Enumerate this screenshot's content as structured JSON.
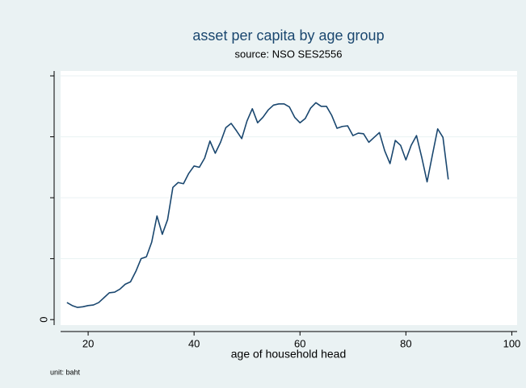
{
  "chart_data": {
    "type": "line",
    "title": "asset per capita by age group",
    "subtitle": "source: NSO SES2556",
    "x_label": "age of household head",
    "note": "unit: baht",
    "x": [
      16,
      17,
      18,
      19,
      20,
      21,
      22,
      23,
      24,
      25,
      26,
      27,
      28,
      29,
      30,
      31,
      32,
      33,
      34,
      35,
      36,
      37,
      38,
      39,
      40,
      41,
      42,
      43,
      44,
      45,
      46,
      47,
      48,
      49,
      50,
      51,
      52,
      53,
      54,
      55,
      56,
      57,
      58,
      59,
      60,
      61,
      62,
      63,
      64,
      65,
      66,
      67,
      68,
      69,
      70,
      71,
      72,
      73,
      74,
      75,
      76,
      77,
      78,
      79,
      80,
      81,
      82,
      83,
      84,
      85,
      86,
      87,
      88
    ],
    "series": [
      {
        "color": "#1a476f",
        "values": [
          0.28,
          0.23,
          0.2,
          0.21,
          0.23,
          0.24,
          0.28,
          0.36,
          0.44,
          0.45,
          0.5,
          0.58,
          0.62,
          0.79,
          1.0,
          1.03,
          1.27,
          1.7,
          1.4,
          1.64,
          2.17,
          2.25,
          2.23,
          2.4,
          2.52,
          2.5,
          2.65,
          2.93,
          2.73,
          2.91,
          3.15,
          3.22,
          3.1,
          2.97,
          3.26,
          3.46,
          3.23,
          3.32,
          3.44,
          3.52,
          3.54,
          3.54,
          3.49,
          3.32,
          3.23,
          3.3,
          3.47,
          3.56,
          3.5,
          3.5,
          3.35,
          3.14,
          3.17,
          3.18,
          3.02,
          3.06,
          3.05,
          2.91,
          2.99,
          3.07,
          2.77,
          2.56,
          2.94,
          2.86,
          2.62,
          2.86,
          3.02,
          2.66,
          2.26,
          2.7,
          3.13,
          2.99,
          2.3
        ]
      }
    ],
    "xlim": [
      14.8,
      101
    ],
    "xticks": [
      20,
      40,
      60,
      80,
      100
    ],
    "ylim": [
      -0.09,
      4.08
    ],
    "yticks": [
      0
    ],
    "minor_yticks": [
      1,
      2,
      3,
      4
    ],
    "grid": true
  }
}
